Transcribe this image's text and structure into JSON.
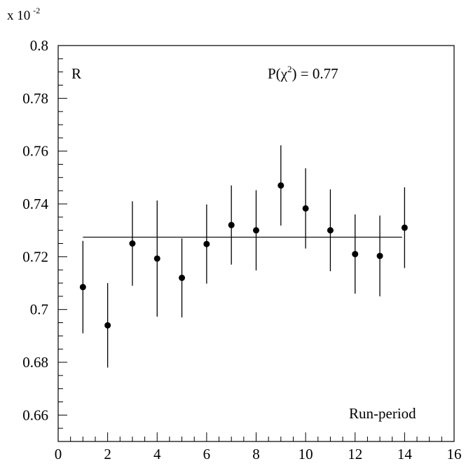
{
  "chart_data": {
    "type": "scatter",
    "x_axis_label": "Run-period",
    "y_axis_label": "R",
    "y_scale_label": "x 10",
    "y_scale_exponent": "-2",
    "annotation": {
      "prefix": "P(",
      "chi": "χ",
      "sup": "2",
      "suffix": ") = 0.77"
    },
    "xlim": [
      0,
      16
    ],
    "ylim": [
      0.65,
      0.8
    ],
    "x_ticks": [
      0,
      2,
      4,
      6,
      8,
      10,
      12,
      14,
      16
    ],
    "x_tick_labels": [
      "0",
      "2",
      "4",
      "6",
      "8",
      "10",
      "12",
      "14",
      "16"
    ],
    "y_ticks": [
      0.66,
      0.68,
      0.7,
      0.72,
      0.74,
      0.76,
      0.78,
      0.8
    ],
    "y_tick_labels": [
      "0.66",
      "0.68",
      "0.7",
      "0.72",
      "0.74",
      "0.76",
      "0.78",
      "0.8"
    ],
    "points": [
      {
        "x": 1,
        "y": 0.7085,
        "err": 0.0175
      },
      {
        "x": 2,
        "y": 0.694,
        "err": 0.016
      },
      {
        "x": 3,
        "y": 0.725,
        "err": 0.016
      },
      {
        "x": 4,
        "y": 0.7193,
        "err": 0.022
      },
      {
        "x": 5,
        "y": 0.712,
        "err": 0.015
      },
      {
        "x": 6,
        "y": 0.7248,
        "err": 0.015
      },
      {
        "x": 7,
        "y": 0.732,
        "err": 0.015
      },
      {
        "x": 8,
        "y": 0.73,
        "err": 0.0152
      },
      {
        "x": 9,
        "y": 0.747,
        "err": 0.0152
      },
      {
        "x": 10,
        "y": 0.7383,
        "err": 0.0152
      },
      {
        "x": 11,
        "y": 0.73,
        "err": 0.0155
      },
      {
        "x": 12,
        "y": 0.721,
        "err": 0.015
      },
      {
        "x": 13,
        "y": 0.7203,
        "err": 0.0153
      },
      {
        "x": 14,
        "y": 0.731,
        "err": 0.0153
      }
    ],
    "fit_line": {
      "x_start": 1,
      "x_end": 13.9,
      "y": 0.7274
    },
    "grid": false,
    "legend": "none"
  }
}
